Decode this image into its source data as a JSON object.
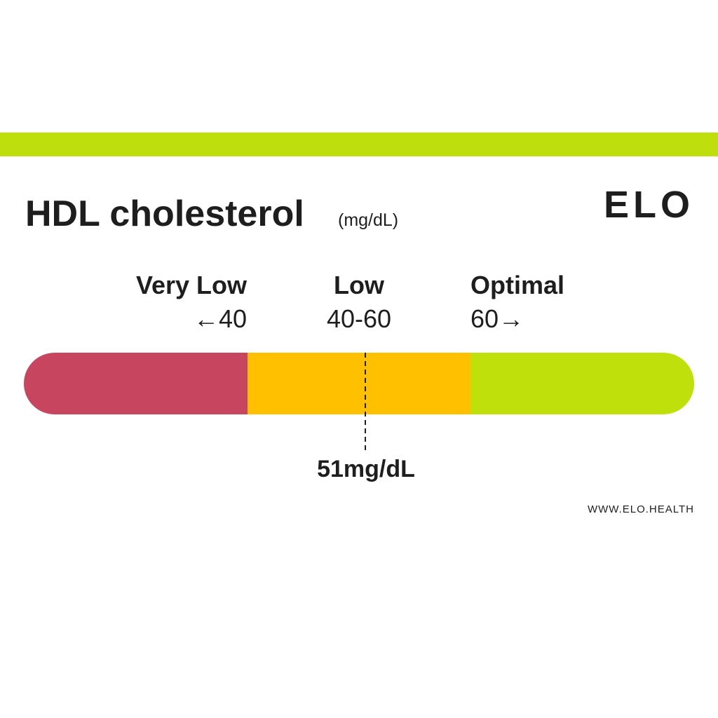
{
  "header": {
    "title": "HDL cholesterol",
    "unit": "(mg/dL)",
    "logo": "ELO"
  },
  "ranges": [
    {
      "label": "Very Low",
      "range": "←40"
    },
    {
      "label": "Low",
      "range": "40-60"
    },
    {
      "label": "Optimal",
      "range": "60→"
    }
  ],
  "result": "51mg/dL",
  "footer": "WWW.ELO.HEALTH"
}
